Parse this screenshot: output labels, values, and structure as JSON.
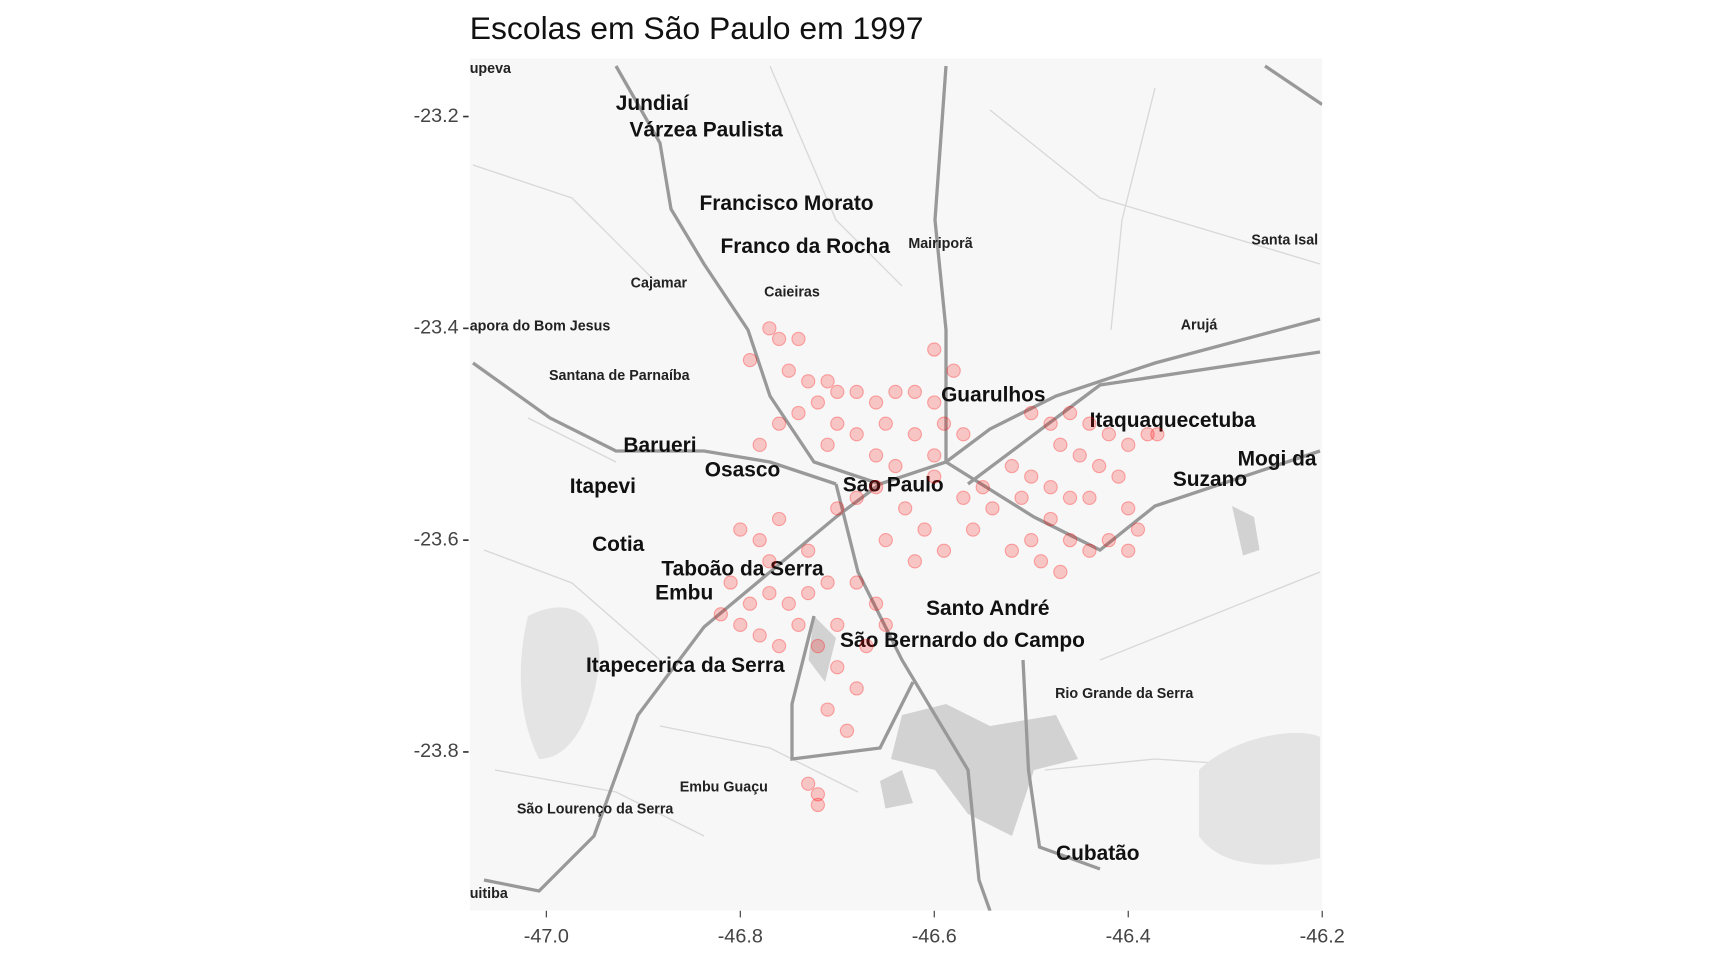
{
  "chart_data": {
    "type": "scatter",
    "title": "Escolas em São Paulo em  1997",
    "xlim": [
      -47.079,
      -46.2
    ],
    "ylim": [
      -23.95,
      -23.145
    ],
    "xticks": [
      {
        "value": -47,
        "label": "-47.0"
      },
      -46.8,
      -46.6,
      -46.4,
      -46.2
    ],
    "yticks": [
      -23.8,
      -23.6,
      -23.4,
      -23.2
    ],
    "color": "#ff0000",
    "point_alpha": 0.2,
    "map_labels": [
      "upeva",
      "Jundiaí",
      "Várzea Paulista",
      "Francisco Morato",
      "Franco da Rocha",
      "Mairiporã",
      "Santa Isal",
      "Cajamar",
      "Caieiras",
      "apora do Bom Jesus",
      "Arujá",
      "Santana de Parnaíba",
      "Guarulhos",
      "Itaquaquecetuba",
      "Mogi da",
      "Suzano",
      "Barueri",
      "Osasco",
      "Sao Paulo",
      "Itapevi",
      "Cotia",
      "Taboão da Serra",
      "Embu",
      "Santo André",
      "São Bernardo do Campo",
      "Itapecerica da Serra",
      "Rio Grande da Serra",
      "Embu Guaçu",
      "São Lourenço da Serra",
      "Cubatão",
      "uitiba"
    ],
    "x": [
      -46.77,
      -46.76,
      -46.74,
      -46.79,
      -46.75,
      -46.73,
      -46.71,
      -46.7,
      -46.68,
      -46.66,
      -46.64,
      -46.62,
      -46.6,
      -46.58,
      -46.6,
      -46.72,
      -46.74,
      -46.7,
      -46.68,
      -46.65,
      -46.62,
      -46.6,
      -46.76,
      -46.78,
      -46.57,
      -46.59,
      -46.66,
      -46.71,
      -46.5,
      -46.48,
      -46.46,
      -46.44,
      -46.42,
      -46.4,
      -46.38,
      -46.37,
      -46.47,
      -46.45,
      -46.43,
      -46.41,
      -46.52,
      -46.5,
      -46.48,
      -46.46,
      -46.4,
      -46.39,
      -46.4,
      -46.42,
      -46.44,
      -46.46,
      -46.48,
      -46.5,
      -46.52,
      -46.49,
      -46.47,
      -46.54,
      -46.55,
      -46.56,
      -46.44,
      -46.51,
      -46.8,
      -46.78,
      -46.76,
      -46.81,
      -46.79,
      -46.77,
      -46.75,
      -46.73,
      -46.8,
      -46.78,
      -46.76,
      -46.74,
      -46.82,
      -46.77,
      -46.73,
      -46.71,
      -46.72,
      -46.7,
      -46.68,
      -46.71,
      -46.69,
      -46.67,
      -46.66,
      -46.68,
      -46.65,
      -46.7,
      -46.66,
      -46.63,
      -46.61,
      -46.59,
      -46.62,
      -46.65,
      -46.7,
      -46.68,
      -46.57,
      -46.6,
      -46.64,
      -46.73,
      -46.72,
      -46.72
    ],
    "y": [
      -23.4,
      -23.41,
      -23.41,
      -23.43,
      -23.44,
      -23.45,
      -23.45,
      -23.46,
      -23.46,
      -23.47,
      -23.46,
      -23.46,
      -23.47,
      -23.44,
      -23.42,
      -23.47,
      -23.48,
      -23.49,
      -23.5,
      -23.49,
      -23.5,
      -23.52,
      -23.49,
      -23.51,
      -23.5,
      -23.49,
      -23.52,
      -23.51,
      -23.48,
      -23.49,
      -23.48,
      -23.49,
      -23.5,
      -23.51,
      -23.5,
      -23.5,
      -23.51,
      -23.52,
      -23.53,
      -23.54,
      -23.53,
      -23.54,
      -23.55,
      -23.56,
      -23.57,
      -23.59,
      -23.61,
      -23.6,
      -23.61,
      -23.6,
      -23.58,
      -23.6,
      -23.61,
      -23.62,
      -23.63,
      -23.57,
      -23.55,
      -23.59,
      -23.56,
      -23.56,
      -23.59,
      -23.6,
      -23.58,
      -23.64,
      -23.66,
      -23.65,
      -23.66,
      -23.65,
      -23.68,
      -23.69,
      -23.7,
      -23.68,
      -23.67,
      -23.62,
      -23.61,
      -23.64,
      -23.7,
      -23.72,
      -23.74,
      -23.76,
      -23.78,
      -23.7,
      -23.66,
      -23.64,
      -23.68,
      -23.68,
      -23.55,
      -23.57,
      -23.59,
      -23.61,
      -23.62,
      -23.6,
      -23.57,
      -23.56,
      -23.56,
      -23.54,
      -23.53,
      -23.83,
      -23.84,
      -23.85
    ]
  }
}
